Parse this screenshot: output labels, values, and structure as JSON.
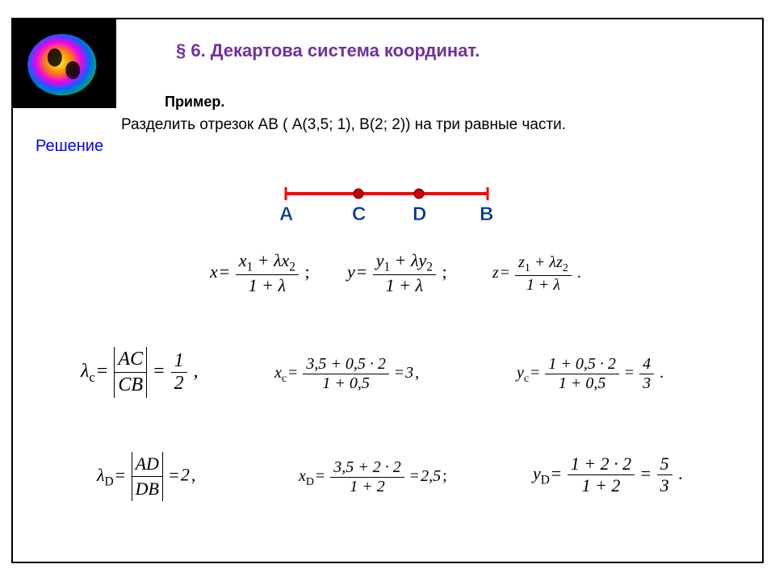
{
  "title": "§ 6. Декартова система координат.",
  "example_label": "Пример.",
  "problem": "Разделить отрезок АВ ( А(3,5; 1), В(2; 2)) на три равные части.",
  "solution_label": "Решение",
  "diagram": {
    "labels": {
      "A": "A",
      "C": "C",
      "D": "D",
      "B": "B"
    },
    "line_color": "#ff0000",
    "dot_fill": "#cc0000",
    "label_color": "#003399"
  },
  "formulas": {
    "general": {
      "x": {
        "var": "x",
        "num": "x<sub>1</sub> + λx<sub>2</sub>",
        "den": "1 + λ"
      },
      "y": {
        "var": "y",
        "num": "y<sub>1</sub> + λy<sub>2</sub>",
        "den": "1 + λ"
      },
      "z": {
        "var": "z",
        "num": "z<sub>1</sub> + λz<sub>2</sub>",
        "den": "1 + λ"
      }
    },
    "lambda_c": {
      "lhs": "λ<sub>c</sub>",
      "num": "AC",
      "den": "CB",
      "r_num": "1",
      "r_den": "2",
      "tail": ","
    },
    "x_c": {
      "lhs": "x<sub>c</sub>",
      "num": "3,5 + 0,5 · 2",
      "den": "1 + 0,5",
      "res": "3",
      "tail": ","
    },
    "y_c": {
      "lhs": "y<sub>c</sub>",
      "num": "1 + 0,5 · 2",
      "den": "1 + 0,5",
      "r_num": "4",
      "r_den": "3",
      "tail": "."
    },
    "lambda_d": {
      "lhs": "λ<sub>D</sub>",
      "num": "AD",
      "den": "DB",
      "res": "2",
      "tail": ","
    },
    "x_d": {
      "lhs": "x<sub>D</sub>",
      "num": "3,5 + 2 · 2",
      "den": "1 + 2",
      "res": "2,5",
      "tail": ";"
    },
    "y_d": {
      "lhs": "y<sub>D</sub>",
      "num": "1 + 2 · 2",
      "den": "1 + 2",
      "r_num": "5",
      "r_den": "3",
      "tail": "."
    }
  }
}
